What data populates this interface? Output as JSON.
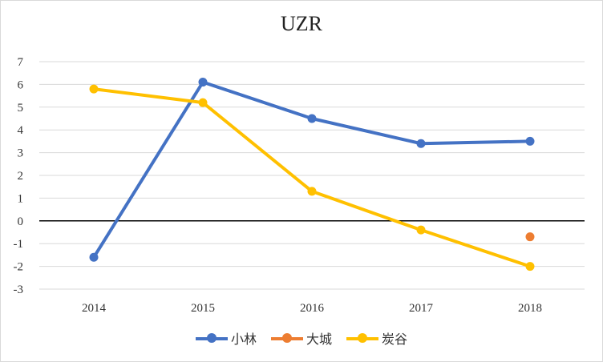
{
  "chart_data": {
    "type": "line",
    "title": "UZR",
    "xlabel": "",
    "ylabel": "",
    "categories": [
      "2014",
      "2015",
      "2016",
      "2017",
      "2018"
    ],
    "ylim": [
      -3,
      7
    ],
    "yticks": [
      "7",
      "6",
      "5",
      "4",
      "3",
      "2",
      "1",
      "0",
      "-1",
      "-2",
      "-3"
    ],
    "grid": true,
    "legend_position": "bottom",
    "series": [
      {
        "name": "小林",
        "color": "#4472C4",
        "values": [
          -1.6,
          6.1,
          4.5,
          3.4,
          3.5
        ]
      },
      {
        "name": "大城",
        "color": "#ED7D31",
        "values": [
          null,
          null,
          null,
          null,
          -0.7
        ]
      },
      {
        "name": "炭谷",
        "color": "#FFC000",
        "values": [
          5.8,
          5.2,
          1.3,
          -0.4,
          -2.0
        ]
      }
    ]
  }
}
